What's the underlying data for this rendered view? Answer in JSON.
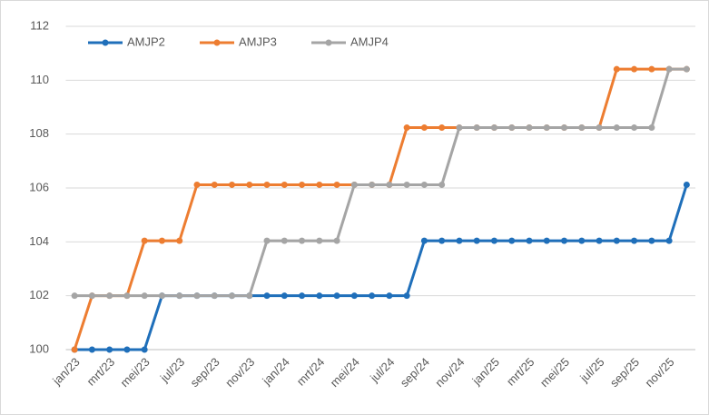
{
  "chart_data": {
    "type": "line",
    "categories": [
      "jan/23",
      null,
      "mrt/23",
      null,
      "mei/23",
      null,
      "jul/23",
      null,
      "sep/23",
      null,
      "nov/23",
      null,
      "jan/24",
      null,
      "mrt/24",
      null,
      "mei/24",
      null,
      "jul/24",
      null,
      "sep/24",
      null,
      "nov/24",
      null,
      "jan/25",
      null,
      "mrt/25",
      null,
      "mei/25",
      null,
      "jul/25",
      null,
      "sep/25",
      null,
      "nov/25",
      null
    ],
    "series": [
      {
        "name": "AMJP2",
        "color": "#1f6fba",
        "values": [
          100,
          100,
          100,
          100,
          100,
          102,
          102,
          102,
          102,
          102,
          102,
          102,
          102,
          102,
          102,
          102,
          102,
          102,
          102,
          102,
          104.04,
          104.04,
          104.04,
          104.04,
          104.04,
          104.04,
          104.04,
          104.04,
          104.04,
          104.04,
          104.04,
          104.04,
          104.04,
          104.04,
          104.04,
          106.12
        ]
      },
      {
        "name": "AMJP3",
        "color": "#ed7d31",
        "values": [
          100,
          102,
          102,
          102,
          104.04,
          104.04,
          104.04,
          106.12,
          106.12,
          106.12,
          106.12,
          106.12,
          106.12,
          106.12,
          106.12,
          106.12,
          106.12,
          106.12,
          106.12,
          108.24,
          108.24,
          108.24,
          108.24,
          108.24,
          108.24,
          108.24,
          108.24,
          108.24,
          108.24,
          108.24,
          108.24,
          110.41,
          110.41,
          110.41,
          110.41,
          110.41
        ]
      },
      {
        "name": "AMJP4",
        "color": "#a5a5a5",
        "values": [
          102,
          102,
          102,
          102,
          102,
          102,
          102,
          102,
          102,
          102,
          102,
          104.04,
          104.04,
          104.04,
          104.04,
          104.04,
          106.12,
          106.12,
          106.12,
          106.12,
          106.12,
          106.12,
          108.24,
          108.24,
          108.24,
          108.24,
          108.24,
          108.24,
          108.24,
          108.24,
          108.24,
          108.24,
          108.24,
          108.24,
          110.41,
          110.41
        ]
      }
    ],
    "ylim": [
      100,
      112
    ],
    "yticks": [
      100,
      102,
      104,
      106,
      108,
      110,
      112
    ],
    "grid": true,
    "legend": "top-left"
  }
}
